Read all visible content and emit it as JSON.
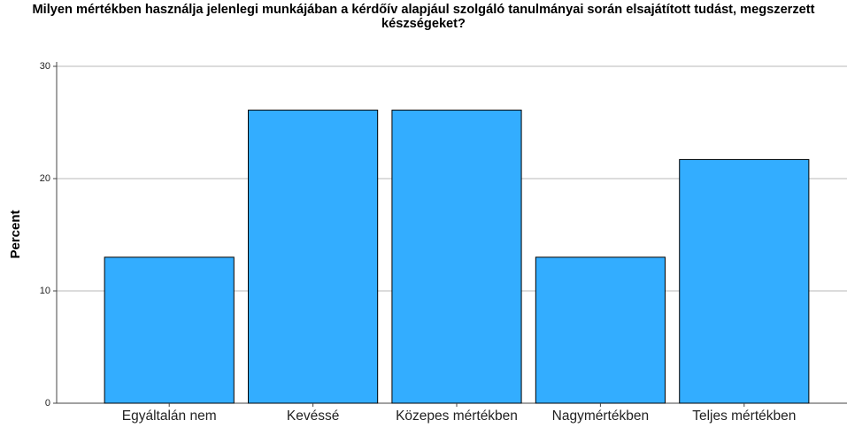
{
  "chart_data": {
    "type": "bar",
    "title": "Milyen mértékben használja jelenlegi munkájában a kérdőív alapjául szolgáló tanulmányai során elsajátított tudást, megszerzett készségeket?",
    "ylabel": "Percent",
    "categories": [
      "Egyáltalán nem",
      "Kevéssé",
      "Közepes mértékben",
      "Nagymértékben",
      "Teljes mértékben"
    ],
    "values": [
      13.0,
      26.1,
      26.1,
      13.0,
      21.7
    ],
    "color": "#33adff",
    "ylim": [
      0,
      30
    ],
    "yticks": [
      0,
      10,
      20,
      30
    ],
    "grid": true
  }
}
